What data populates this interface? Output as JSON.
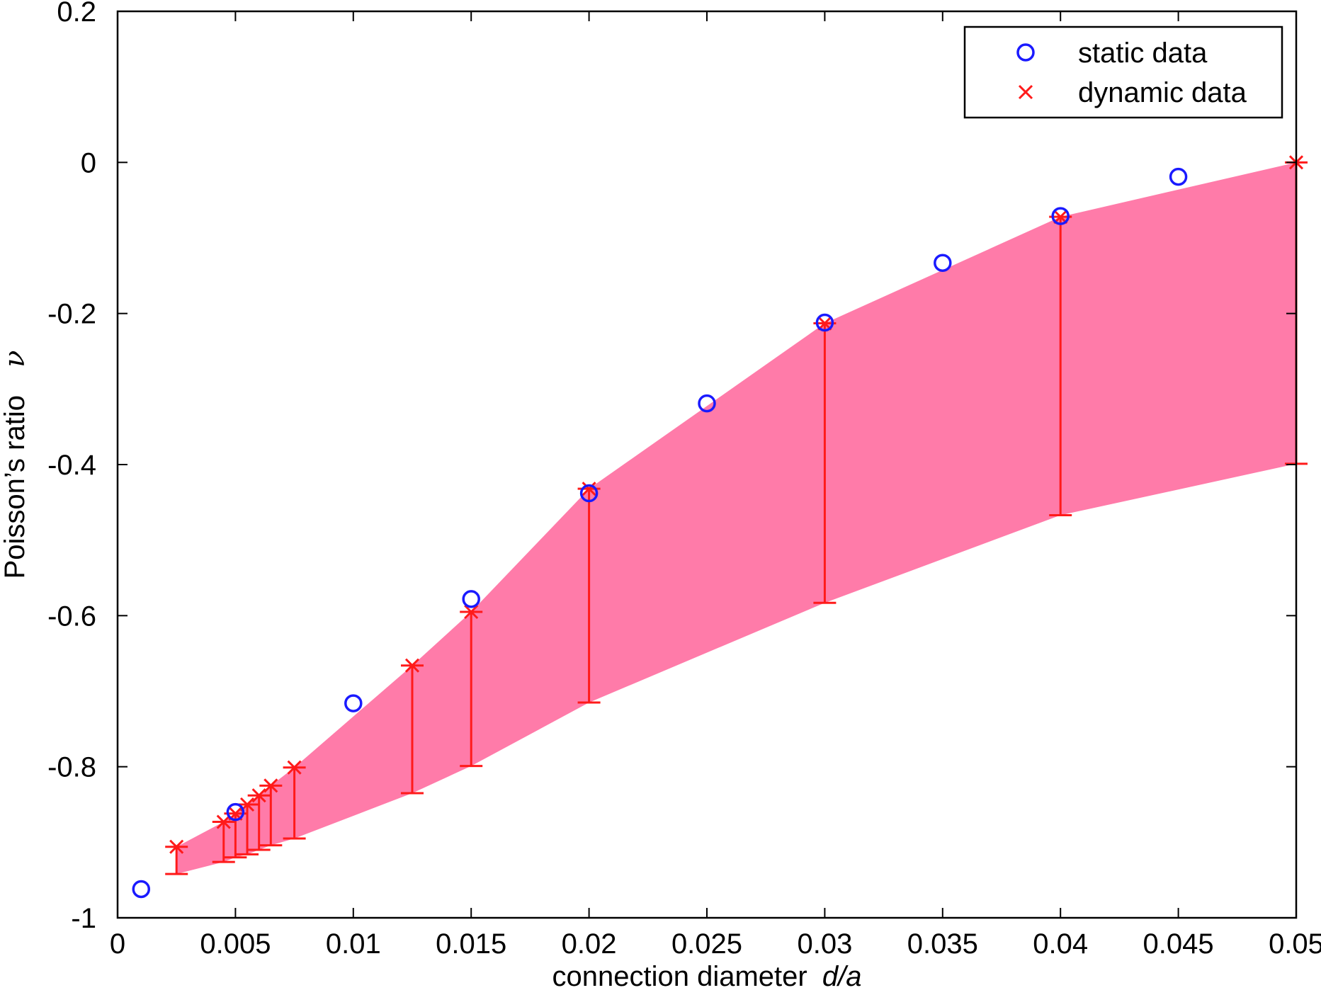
{
  "chart_data": {
    "type": "scatter",
    "xlabel": "connection diameter",
    "xlabel_italic": "d/a",
    "ylabel": "Poisson’s ratio",
    "ylabel_symbol": "ν",
    "xlim": [
      0,
      0.05
    ],
    "ylim": [
      -1,
      0.2
    ],
    "x_ticks": [
      0,
      0.005,
      0.01,
      0.015,
      0.02,
      0.025,
      0.03,
      0.035,
      0.04,
      0.045,
      0.05
    ],
    "x_tick_labels": [
      "0",
      "0.005",
      "0.01",
      "0.015",
      "0.02",
      "0.025",
      "0.03",
      "0.035",
      "0.04",
      "0.045",
      "0.05"
    ],
    "y_ticks": [
      -1,
      -0.8,
      -0.6,
      -0.4,
      -0.2,
      0,
      0.2
    ],
    "y_tick_labels": [
      "-1",
      "-0.8",
      "-0.6",
      "-0.4",
      "-0.2",
      "0",
      "0.2"
    ],
    "grid": false,
    "legend_position": "top-right",
    "legend": [
      {
        "label": "static data",
        "marker": "circle",
        "color": "#1a1aff"
      },
      {
        "label": "dynamic data",
        "marker": "x",
        "color": "#ff1a1a"
      }
    ],
    "colors": {
      "static": "#1a1aff",
      "dynamic": "#ff1a1a",
      "band": "#ff7ba9"
    },
    "series": [
      {
        "name": "static data",
        "marker": "circle",
        "x": [
          0.001,
          0.005,
          0.01,
          0.015,
          0.02,
          0.025,
          0.03,
          0.035,
          0.04,
          0.045
        ],
        "y": [
          -0.962,
          -0.86,
          -0.716,
          -0.578,
          -0.438,
          -0.319,
          -0.212,
          -0.133,
          -0.071,
          -0.019
        ]
      },
      {
        "name": "dynamic data",
        "marker": "x",
        "x": [
          0.0025,
          0.0045,
          0.005,
          0.0055,
          0.006,
          0.0065,
          0.0075,
          0.0125,
          0.015,
          0.02,
          0.03,
          0.04,
          0.05
        ],
        "y": [
          -0.906,
          -0.873,
          -0.862,
          -0.85,
          -0.838,
          -0.825,
          -0.801,
          -0.666,
          -0.595,
          -0.432,
          -0.213,
          -0.072,
          0.0
        ],
        "lower": [
          -0.942,
          -0.926,
          -0.92,
          -0.916,
          -0.91,
          -0.904,
          -0.895,
          -0.835,
          -0.799,
          -0.715,
          -0.583,
          -0.467,
          -0.399
        ]
      }
    ]
  }
}
